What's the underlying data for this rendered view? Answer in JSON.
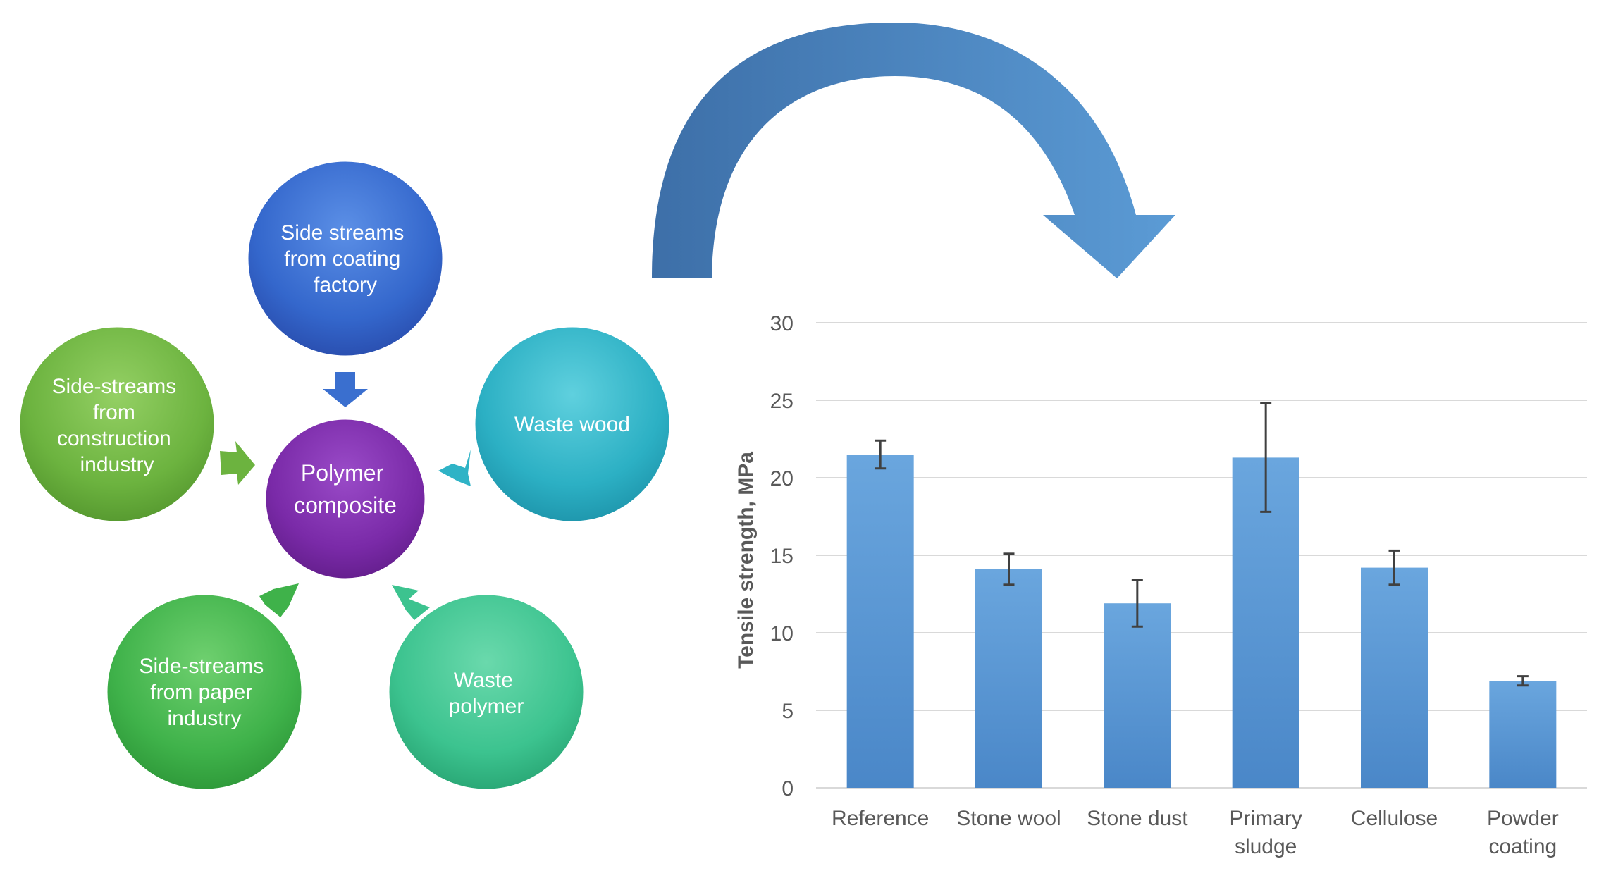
{
  "diagram": {
    "center": {
      "lines": [
        "Polymer",
        "composite"
      ]
    },
    "sources": [
      {
        "id": "coating",
        "lines": [
          "Side streams",
          "from coating",
          "factory"
        ]
      },
      {
        "id": "wood",
        "lines": [
          "Waste wood"
        ]
      },
      {
        "id": "polymer",
        "lines": [
          "Waste",
          "polymer"
        ]
      },
      {
        "id": "paper",
        "lines": [
          "Side-streams",
          "from paper",
          "industry"
        ]
      },
      {
        "id": "construction",
        "lines": [
          "Side-streams",
          "from",
          "construction",
          "industry"
        ]
      }
    ],
    "colors": {
      "coating": "#3a6fcf",
      "wood": "#2fb3c6",
      "polymer": "#3cc38f",
      "paper": "#3fb24a",
      "construction": "#6cb33f",
      "center": "#7a2aa8",
      "big_arrow": "#5b9bd5"
    }
  },
  "chart_data": {
    "type": "bar",
    "categories": [
      [
        "Reference"
      ],
      [
        "Stone wool"
      ],
      [
        "Stone dust"
      ],
      [
        "Primary",
        "sludge"
      ],
      [
        "Cellulose"
      ],
      [
        "Powder",
        "coating"
      ]
    ],
    "values": [
      21.5,
      14.1,
      11.9,
      21.3,
      14.2,
      6.9
    ],
    "error": [
      0.9,
      1.0,
      1.5,
      3.5,
      1.1,
      0.3
    ],
    "ylabel": "Tensile strength, MPa",
    "ylim": [
      0,
      30
    ],
    "yticks": [
      0,
      5,
      10,
      15,
      20,
      25,
      30
    ],
    "grid": true,
    "bar_color": "#5b9bd5"
  }
}
